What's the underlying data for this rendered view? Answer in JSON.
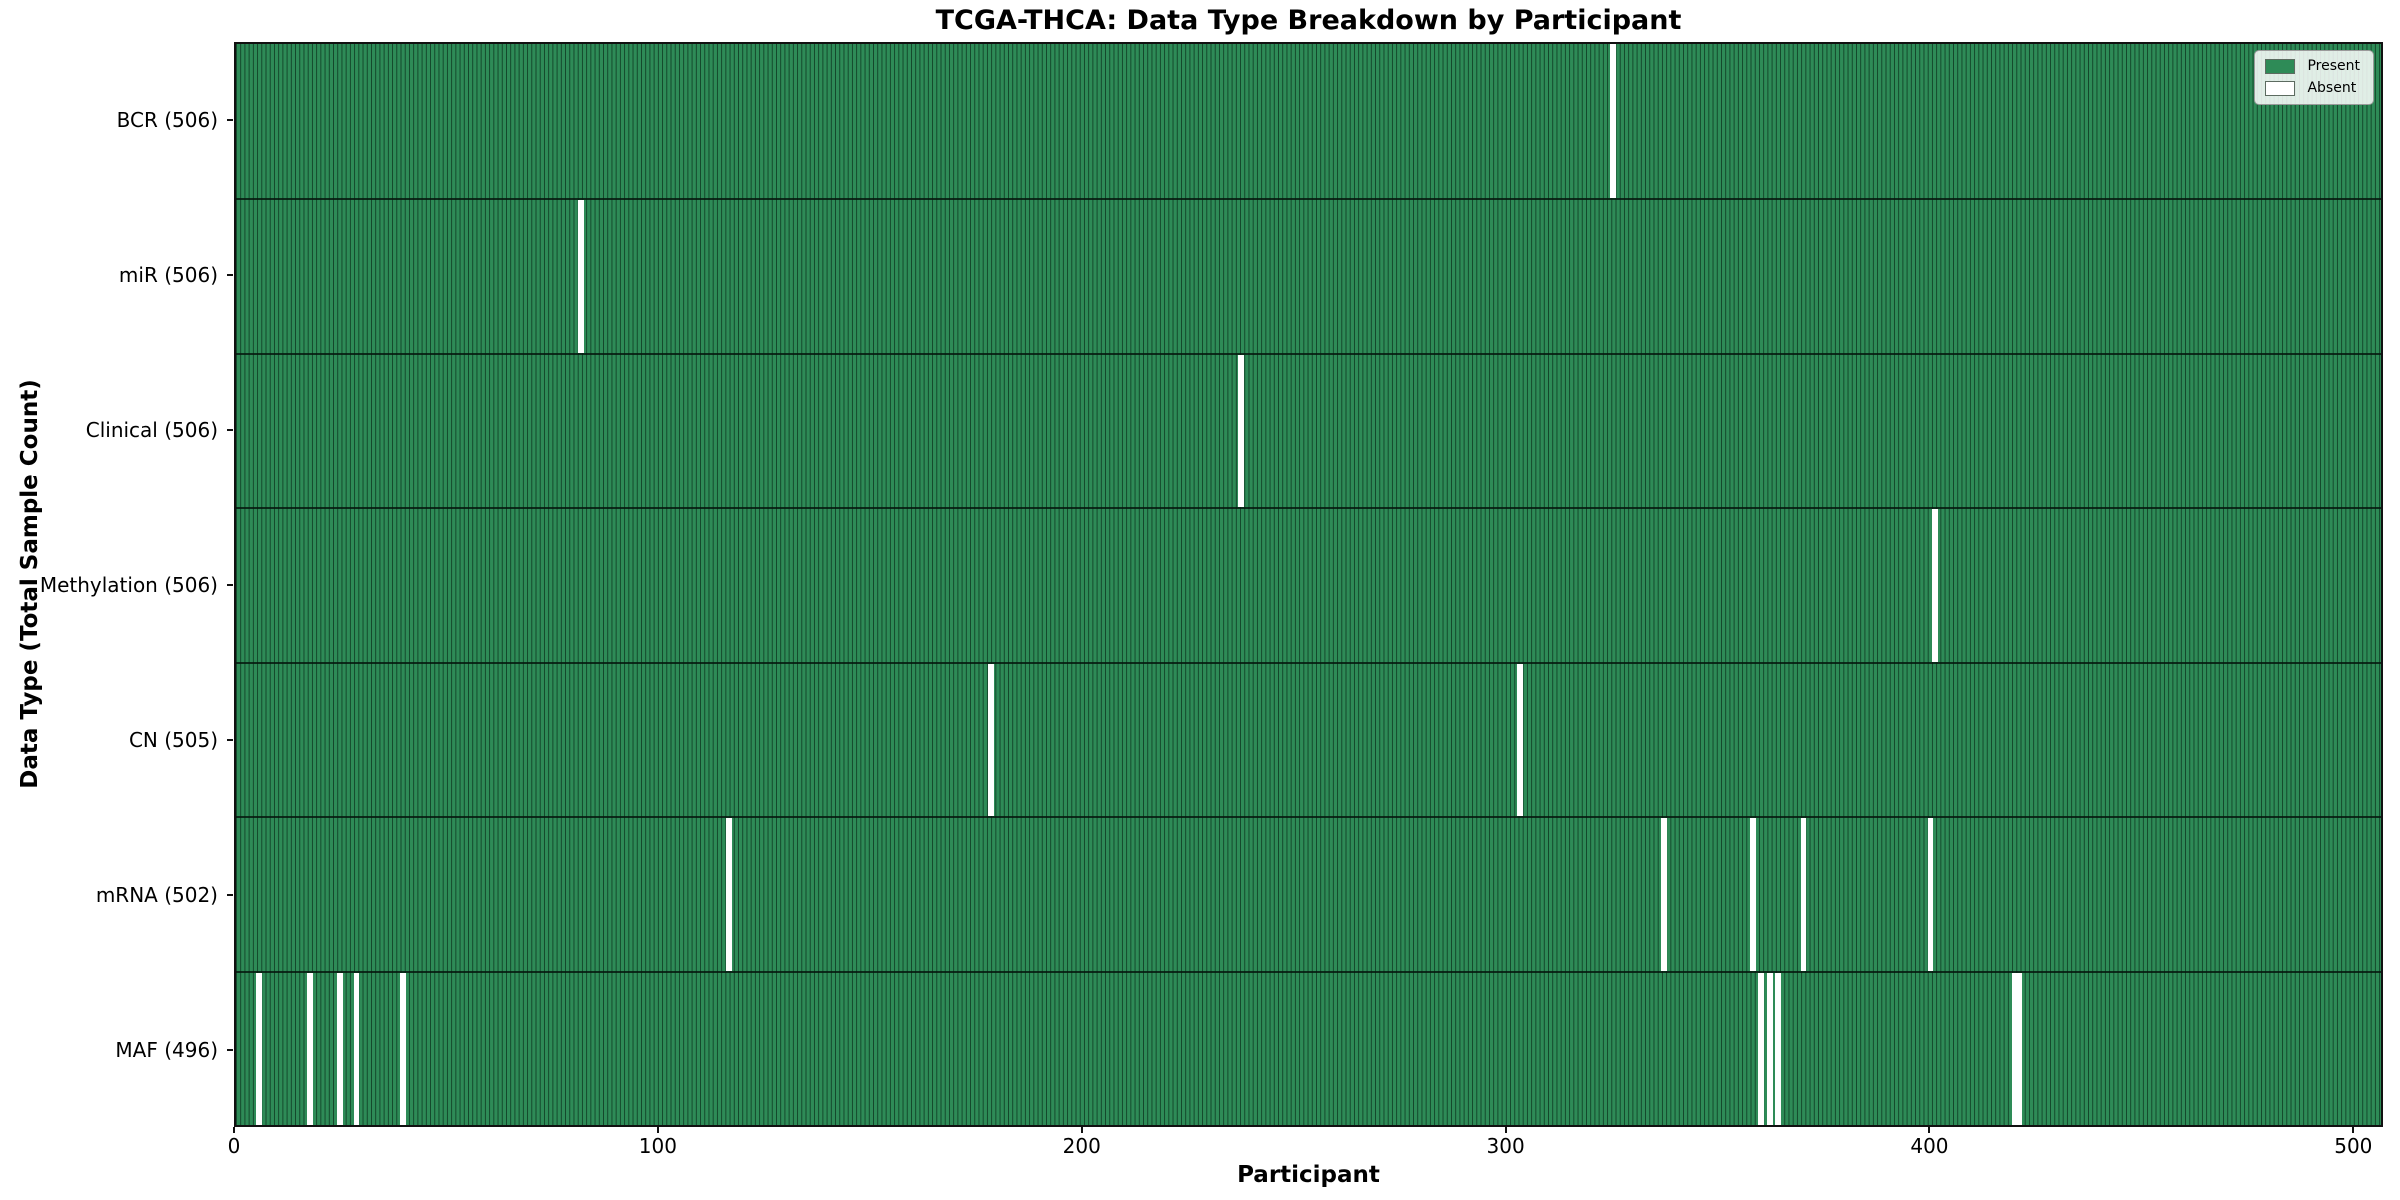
{
  "chart_data": {
    "type": "heatmap",
    "title": "TCGA-THCA: Data Type Breakdown by Participant",
    "xlabel": "Participant",
    "ylabel": "Data Type (Total Sample Count)",
    "grid": false,
    "x_ticks": [
      0,
      100,
      200,
      300,
      400,
      500
    ],
    "x_range": [
      0,
      507
    ],
    "n_participants": 506,
    "present_color": "#2e8b57",
    "absent_color": "#ffffff",
    "cell_edge_color": "#0a2a18",
    "legend": {
      "position": "upper right",
      "entries": [
        {
          "label": "Present",
          "color": "#2e8b57"
        },
        {
          "label": "Absent",
          "color": "#ffffff"
        }
      ]
    },
    "rows": [
      {
        "label": "BCR (506)",
        "data_type": "BCR",
        "total_sample_count": 506,
        "absent_participants": [
          325
        ]
      },
      {
        "label": "miR (506)",
        "data_type": "miR",
        "total_sample_count": 506,
        "absent_participants": [
          81
        ]
      },
      {
        "label": "Clinical (506)",
        "data_type": "Clinical",
        "total_sample_count": 506,
        "absent_participants": [
          237
        ]
      },
      {
        "label": "Methylation (506)",
        "data_type": "Methylation",
        "total_sample_count": 506,
        "absent_participants": [
          401
        ]
      },
      {
        "label": "CN (505)",
        "data_type": "CN",
        "total_sample_count": 505,
        "absent_participants": [
          178,
          303
        ]
      },
      {
        "label": "mRNA (502)",
        "data_type": "mRNA",
        "total_sample_count": 502,
        "absent_participants": [
          116,
          337,
          358,
          370,
          400
        ]
      },
      {
        "label": "MAF (496)",
        "data_type": "MAF",
        "total_sample_count": 496,
        "absent_participants": [
          5,
          17,
          24,
          28,
          39,
          360,
          362,
          364,
          420,
          421
        ]
      }
    ]
  }
}
